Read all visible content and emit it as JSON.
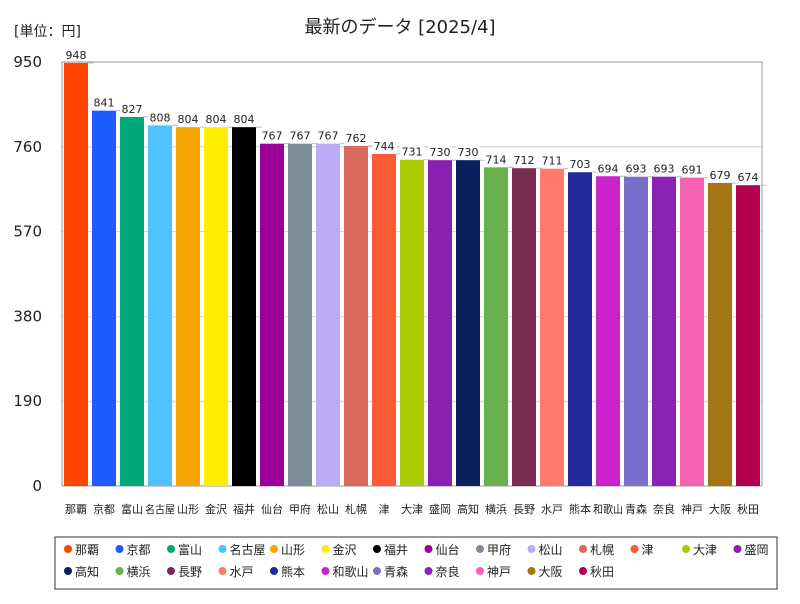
{
  "chart_data": {
    "type": "bar",
    "unit_label": "[単位：円]",
    "title": "最新のデータ [2025/4]",
    "ylim": [
      0,
      950
    ],
    "yticks": [
      0,
      190,
      380,
      570,
      760,
      950
    ],
    "grid": true,
    "legend_position": "bottom",
    "categories": [
      "那覇",
      "京都",
      "富山",
      "名古屋",
      "山形",
      "金沢",
      "福井",
      "仙台",
      "甲府",
      "松山",
      "札幌",
      "津",
      "大津",
      "盛岡",
      "高知",
      "横浜",
      "長野",
      "水戸",
      "熊本",
      "和歌山",
      "青森",
      "奈良",
      "神戸",
      "大阪",
      "秋田"
    ],
    "values": [
      948,
      841,
      827,
      808,
      804,
      804,
      804,
      767,
      767,
      767,
      762,
      744,
      731,
      730,
      730,
      714,
      712,
      711,
      703,
      694,
      693,
      693,
      691,
      679,
      674
    ],
    "colors": [
      "#ff4500",
      "#1e5bff",
      "#00a878",
      "#4fc3ff",
      "#f5a300",
      "#ffee00",
      "#000000",
      "#9b009b",
      "#7f8c99",
      "#bbaaf5",
      "#d9685d",
      "#ff5a36",
      "#a8cc00",
      "#8a1fb0",
      "#0a1f5c",
      "#6ab04c",
      "#7a2c55",
      "#ff7a6a",
      "#232a9c",
      "#cc22cc",
      "#7b6fcc",
      "#8b22b5",
      "#f562b2",
      "#a37612",
      "#b3004f"
    ]
  }
}
